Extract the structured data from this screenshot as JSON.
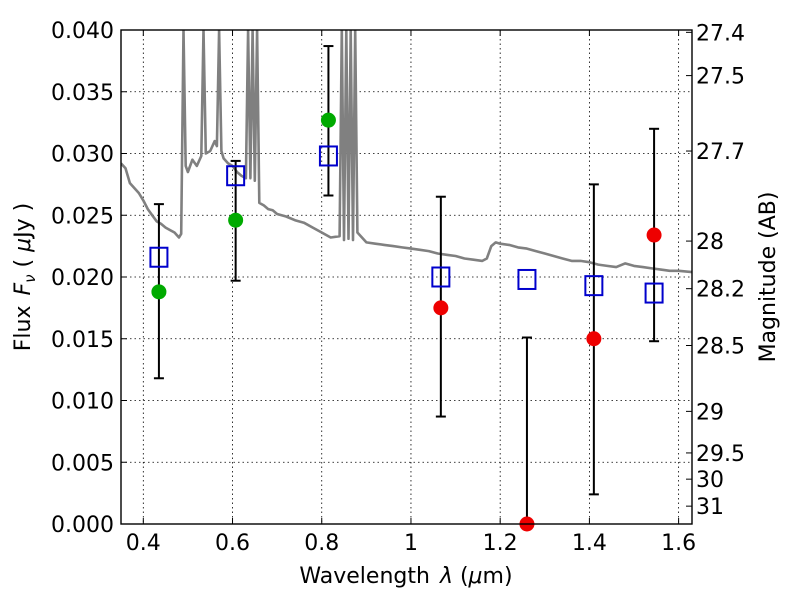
{
  "chart_data": {
    "type": "scatter",
    "xlabel_prefix": "Wavelength",
    "xlabel_symbol": "λ",
    "xlabel_unit_open": " (",
    "xlabel_unit_mu": "μ",
    "xlabel_unit_rest": "m)",
    "ylabel_prefix": "Flux",
    "ylabel_symbol": "F",
    "ylabel_sub": "ν",
    "ylabel_unit_open": " ( ",
    "ylabel_unit_mu": "μ",
    "ylabel_unit_rest": "Jy )",
    "y2label": "Magnitude (AB)",
    "xlim": [
      0.35,
      1.63
    ],
    "ylim": [
      0.0,
      0.04
    ],
    "grid": true,
    "xticks": [
      {
        "v": 0.4,
        "label": "0.4"
      },
      {
        "v": 0.6,
        "label": "0.6"
      },
      {
        "v": 0.8,
        "label": "0.8"
      },
      {
        "v": 1.0,
        "label": "1"
      },
      {
        "v": 1.2,
        "label": "1.2"
      },
      {
        "v": 1.4,
        "label": "1.4"
      },
      {
        "v": 1.6,
        "label": "1.6"
      }
    ],
    "yticks": [
      {
        "v": 0.0,
        "label": "0.000"
      },
      {
        "v": 0.005,
        "label": "0.005"
      },
      {
        "v": 0.01,
        "label": "0.010"
      },
      {
        "v": 0.015,
        "label": "0.015"
      },
      {
        "v": 0.02,
        "label": "0.020"
      },
      {
        "v": 0.025,
        "label": "0.025"
      },
      {
        "v": 0.03,
        "label": "0.030"
      },
      {
        "v": 0.035,
        "label": "0.035"
      },
      {
        "v": 0.04,
        "label": "0.040"
      }
    ],
    "y2ticks": [
      {
        "mag": 27.4,
        "label": "27.4"
      },
      {
        "mag": 27.5,
        "label": "27.5"
      },
      {
        "mag": 27.7,
        "label": "27.7"
      },
      {
        "mag": 28,
        "label": "28"
      },
      {
        "mag": 28.2,
        "label": "28.2"
      },
      {
        "mag": 28.5,
        "label": "28.5"
      },
      {
        "mag": 29,
        "label": "29"
      },
      {
        "mag": 29.5,
        "label": "29.5"
      },
      {
        "mag": 30,
        "label": "30"
      },
      {
        "mag": 31,
        "label": "31"
      }
    ],
    "colors": {
      "spectrum": "#808080",
      "model": "#0000cc",
      "green": "#00aa00",
      "red": "#ee0000",
      "errorbar": "#000000"
    },
    "spectrum": [
      [
        0.35,
        0.0292
      ],
      [
        0.36,
        0.0288
      ],
      [
        0.37,
        0.0276
      ],
      [
        0.38,
        0.0272
      ],
      [
        0.39,
        0.0268
      ],
      [
        0.4,
        0.0262
      ],
      [
        0.41,
        0.0255
      ],
      [
        0.42,
        0.025
      ],
      [
        0.43,
        0.0245
      ],
      [
        0.44,
        0.0243
      ],
      [
        0.45,
        0.024
      ],
      [
        0.46,
        0.0238
      ],
      [
        0.47,
        0.0236
      ],
      [
        0.48,
        0.0232
      ],
      [
        0.485,
        0.0235
      ],
      [
        0.49,
        0.04
      ],
      [
        0.495,
        0.029
      ],
      [
        0.5,
        0.0285
      ],
      [
        0.51,
        0.0295
      ],
      [
        0.52,
        0.029
      ],
      [
        0.53,
        0.0298
      ],
      [
        0.535,
        0.04
      ],
      [
        0.54,
        0.03
      ],
      [
        0.55,
        0.0302
      ],
      [
        0.56,
        0.031
      ],
      [
        0.565,
        0.0306
      ],
      [
        0.57,
        0.04
      ],
      [
        0.575,
        0.0302
      ],
      [
        0.58,
        0.0296
      ],
      [
        0.59,
        0.0292
      ],
      [
        0.6,
        0.029
      ],
      [
        0.61,
        0.0285
      ],
      [
        0.62,
        0.0282
      ],
      [
        0.63,
        0.028
      ],
      [
        0.635,
        0.04
      ],
      [
        0.64,
        0.028
      ],
      [
        0.645,
        0.04
      ],
      [
        0.65,
        0.0278
      ],
      [
        0.655,
        0.04
      ],
      [
        0.66,
        0.026
      ],
      [
        0.67,
        0.0258
      ],
      [
        0.68,
        0.0255
      ],
      [
        0.69,
        0.0254
      ],
      [
        0.7,
        0.0251
      ],
      [
        0.72,
        0.0249
      ],
      [
        0.74,
        0.0246
      ],
      [
        0.76,
        0.0244
      ],
      [
        0.78,
        0.024
      ],
      [
        0.8,
        0.0236
      ],
      [
        0.82,
        0.0232
      ],
      [
        0.84,
        0.0233
      ],
      [
        0.845,
        0.04
      ],
      [
        0.85,
        0.023
      ],
      [
        0.855,
        0.04
      ],
      [
        0.86,
        0.0231
      ],
      [
        0.865,
        0.04
      ],
      [
        0.87,
        0.023
      ],
      [
        0.875,
        0.04
      ],
      [
        0.88,
        0.0236
      ],
      [
        0.9,
        0.0228
      ],
      [
        0.92,
        0.0227
      ],
      [
        0.94,
        0.0226
      ],
      [
        0.96,
        0.0225
      ],
      [
        0.98,
        0.0224
      ],
      [
        1.0,
        0.0223
      ],
      [
        1.02,
        0.0222
      ],
      [
        1.04,
        0.0221
      ],
      [
        1.06,
        0.0219
      ],
      [
        1.08,
        0.0218
      ],
      [
        1.1,
        0.0217
      ],
      [
        1.12,
        0.0215
      ],
      [
        1.14,
        0.0214
      ],
      [
        1.16,
        0.0213
      ],
      [
        1.17,
        0.0215
      ],
      [
        1.18,
        0.0225
      ],
      [
        1.19,
        0.0228
      ],
      [
        1.2,
        0.0227
      ],
      [
        1.22,
        0.0226
      ],
      [
        1.24,
        0.0224
      ],
      [
        1.26,
        0.0223
      ],
      [
        1.28,
        0.0221
      ],
      [
        1.3,
        0.0219
      ],
      [
        1.32,
        0.0217
      ],
      [
        1.34,
        0.0215
      ],
      [
        1.36,
        0.0213
      ],
      [
        1.38,
        0.0213
      ],
      [
        1.4,
        0.0212
      ],
      [
        1.42,
        0.021
      ],
      [
        1.44,
        0.0209
      ],
      [
        1.46,
        0.0208
      ],
      [
        1.48,
        0.0211
      ],
      [
        1.5,
        0.0209
      ],
      [
        1.52,
        0.0208
      ],
      [
        1.54,
        0.0207
      ],
      [
        1.56,
        0.0206
      ],
      [
        1.58,
        0.0205
      ],
      [
        1.6,
        0.0205
      ],
      [
        1.63,
        0.0204
      ]
    ],
    "model_points": [
      {
        "x": 0.435,
        "y": 0.0216
      },
      {
        "x": 0.607,
        "y": 0.0282
      },
      {
        "x": 0.815,
        "y": 0.0298
      },
      {
        "x": 1.067,
        "y": 0.02
      },
      {
        "x": 1.26,
        "y": 0.0198
      },
      {
        "x": 1.41,
        "y": 0.0193
      },
      {
        "x": 1.545,
        "y": 0.0187
      }
    ],
    "observed_points": [
      {
        "x": 0.435,
        "y": 0.0188,
        "err_low": 0.0118,
        "err_high": 0.0259,
        "color": "green"
      },
      {
        "x": 0.607,
        "y": 0.0246,
        "err_low": 0.0197,
        "err_high": 0.0294,
        "color": "green"
      },
      {
        "x": 0.815,
        "y": 0.0327,
        "err_low": 0.0266,
        "err_high": 0.0387,
        "color": "green"
      },
      {
        "x": 1.067,
        "y": 0.0175,
        "err_low": 0.0087,
        "err_high": 0.0265,
        "color": "red"
      },
      {
        "x": 1.26,
        "y": 0.0,
        "err_low": 0.0,
        "err_high": 0.0151,
        "color": "red"
      },
      {
        "x": 1.41,
        "y": 0.015,
        "err_low": 0.0024,
        "err_high": 0.0275,
        "color": "red"
      },
      {
        "x": 1.545,
        "y": 0.0234,
        "err_low": 0.0148,
        "err_high": 0.032,
        "color": "red"
      }
    ]
  }
}
